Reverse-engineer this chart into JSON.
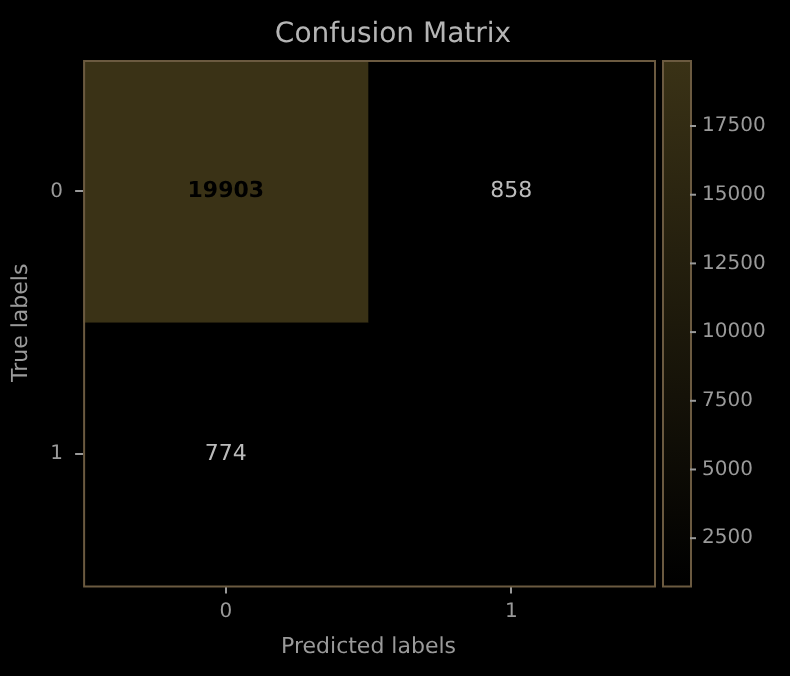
{
  "chart_data": {
    "type": "heatmap",
    "title": "Confusion Matrix",
    "xlabel": "Predicted labels",
    "ylabel": "True labels",
    "categories": [
      "0",
      "1"
    ],
    "y_categories": [
      "0",
      "1"
    ],
    "cells": [
      [
        19903,
        858
      ],
      [
        774,
        null
      ]
    ],
    "cell_labels": [
      [
        "19903",
        "858"
      ],
      [
        "774",
        null
      ]
    ],
    "clim": [
      774,
      19903
    ],
    "cticks": [
      2500,
      5000,
      7500,
      10000,
      12500,
      15000,
      17500
    ]
  }
}
